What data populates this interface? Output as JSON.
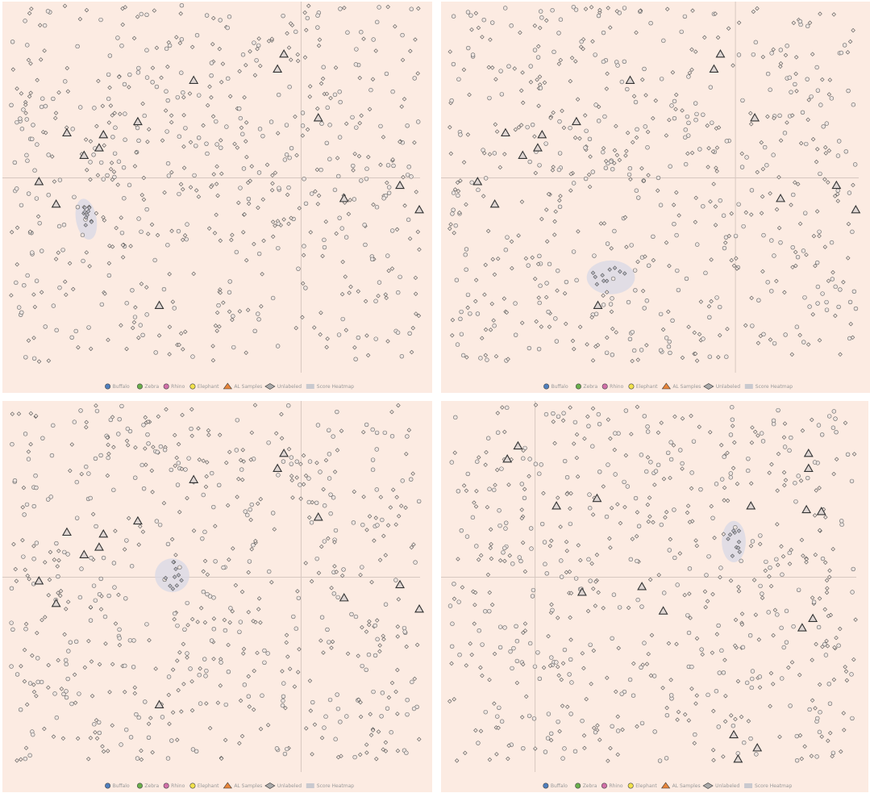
{
  "chart_data": [
    {
      "type": "scatter",
      "title": "",
      "xlabel": "",
      "ylabel": "",
      "xlim": [
        0,
        1
      ],
      "ylim": [
        0,
        1
      ],
      "grid": false,
      "crosshair": {
        "x": 0.695,
        "y": 0.53
      },
      "highlight_region": {
        "cx": 0.195,
        "cy": 0.42,
        "rx": 0.024,
        "ry": 0.055,
        "rotate": -10
      },
      "unlabeled_seed": 11,
      "al_samples": [
        [
          0.655,
          0.86
        ],
        [
          0.64,
          0.82
        ],
        [
          0.445,
          0.79
        ],
        [
          0.735,
          0.69
        ],
        [
          0.315,
          0.68
        ],
        [
          0.235,
          0.645
        ],
        [
          0.15,
          0.65
        ],
        [
          0.225,
          0.61
        ],
        [
          0.19,
          0.59
        ],
        [
          0.085,
          0.52
        ],
        [
          0.125,
          0.46
        ],
        [
          0.925,
          0.51
        ],
        [
          0.795,
          0.475
        ],
        [
          0.97,
          0.445
        ],
        [
          0.365,
          0.19
        ]
      ],
      "legend": {
        "position": "bottom-center",
        "entries": [
          "Buffalo",
          "Zebra",
          "Rhino",
          "Elephant",
          "AL Samples",
          "Unlabeled",
          "Score Heatmap"
        ]
      }
    },
    {
      "type": "scatter",
      "title": "",
      "xlabel": "",
      "ylabel": "",
      "xlim": [
        0,
        1
      ],
      "ylim": [
        0,
        1
      ],
      "grid": false,
      "crosshair": {
        "x": 0.685,
        "y": 0.53
      },
      "highlight_region": {
        "cx": 0.395,
        "cy": 0.265,
        "rx": 0.056,
        "ry": 0.045,
        "rotate": 0
      },
      "unlabeled_seed": 22,
      "al_samples": [
        [
          0.65,
          0.86
        ],
        [
          0.635,
          0.82
        ],
        [
          0.44,
          0.79
        ],
        [
          0.73,
          0.69
        ],
        [
          0.315,
          0.68
        ],
        [
          0.235,
          0.645
        ],
        [
          0.15,
          0.65
        ],
        [
          0.225,
          0.61
        ],
        [
          0.19,
          0.59
        ],
        [
          0.085,
          0.52
        ],
        [
          0.125,
          0.46
        ],
        [
          0.92,
          0.51
        ],
        [
          0.79,
          0.475
        ],
        [
          0.965,
          0.445
        ],
        [
          0.365,
          0.19
        ]
      ],
      "legend": {
        "position": "bottom-center",
        "entries": [
          "Buffalo",
          "Zebra",
          "Rhino",
          "Elephant",
          "AL Samples",
          "Unlabeled",
          "Score Heatmap"
        ]
      }
    },
    {
      "type": "scatter",
      "title": "",
      "xlabel": "",
      "ylabel": "",
      "xlim": [
        0,
        1
      ],
      "ylim": [
        0,
        1
      ],
      "grid": false,
      "crosshair": {
        "x": 0.695,
        "y": 0.53
      },
      "highlight_region": {
        "cx": 0.395,
        "cy": 0.535,
        "rx": 0.04,
        "ry": 0.045,
        "rotate": 0
      },
      "unlabeled_seed": 33,
      "al_samples": [
        [
          0.655,
          0.86
        ],
        [
          0.64,
          0.82
        ],
        [
          0.445,
          0.79
        ],
        [
          0.735,
          0.69
        ],
        [
          0.315,
          0.68
        ],
        [
          0.235,
          0.645
        ],
        [
          0.15,
          0.65
        ],
        [
          0.225,
          0.61
        ],
        [
          0.19,
          0.59
        ],
        [
          0.085,
          0.52
        ],
        [
          0.125,
          0.46
        ],
        [
          0.925,
          0.51
        ],
        [
          0.795,
          0.475
        ],
        [
          0.97,
          0.445
        ],
        [
          0.365,
          0.19
        ]
      ],
      "legend": {
        "position": "bottom-center",
        "entries": [
          "Buffalo",
          "Zebra",
          "Rhino",
          "Elephant",
          "AL Samples",
          "Unlabeled",
          "Score Heatmap"
        ]
      }
    },
    {
      "type": "scatter",
      "title": "",
      "xlabel": "",
      "ylabel": "",
      "xlim": [
        0,
        1
      ],
      "ylim": [
        0,
        1
      ],
      "grid": false,
      "crosshair": {
        "x": 0.22,
        "y": 0.53
      },
      "highlight_region": {
        "cx": 0.685,
        "cy": 0.625,
        "rx": 0.028,
        "ry": 0.055,
        "rotate": 0
      },
      "unlabeled_seed": 44,
      "al_samples": [
        [
          0.18,
          0.88
        ],
        [
          0.155,
          0.845
        ],
        [
          0.27,
          0.72
        ],
        [
          0.365,
          0.74
        ],
        [
          0.725,
          0.72
        ],
        [
          0.86,
          0.86
        ],
        [
          0.86,
          0.82
        ],
        [
          0.855,
          0.71
        ],
        [
          0.89,
          0.705
        ],
        [
          0.33,
          0.49
        ],
        [
          0.47,
          0.505
        ],
        [
          0.52,
          0.44
        ],
        [
          0.87,
          0.42
        ],
        [
          0.845,
          0.395
        ],
        [
          0.685,
          0.11
        ],
        [
          0.74,
          0.075
        ],
        [
          0.695,
          0.045
        ]
      ],
      "legend": {
        "position": "bottom-center",
        "entries": [
          "Buffalo",
          "Zebra",
          "Rhino",
          "Elephant",
          "AL Samples",
          "Unlabeled",
          "Score Heatmap"
        ]
      }
    }
  ],
  "colors": {
    "background": "#fcebe2",
    "buffalo": "#4f7fbe",
    "zebra": "#6ab04c",
    "rhino": "#d26fa9",
    "elephant": "#f2e24b",
    "al_samples": "#e8853a",
    "unlabeled": "#aaaaaa",
    "score_heatmap": "#c9c9cf",
    "highlight": "#d8d8e6",
    "legend_text": "#999999"
  }
}
